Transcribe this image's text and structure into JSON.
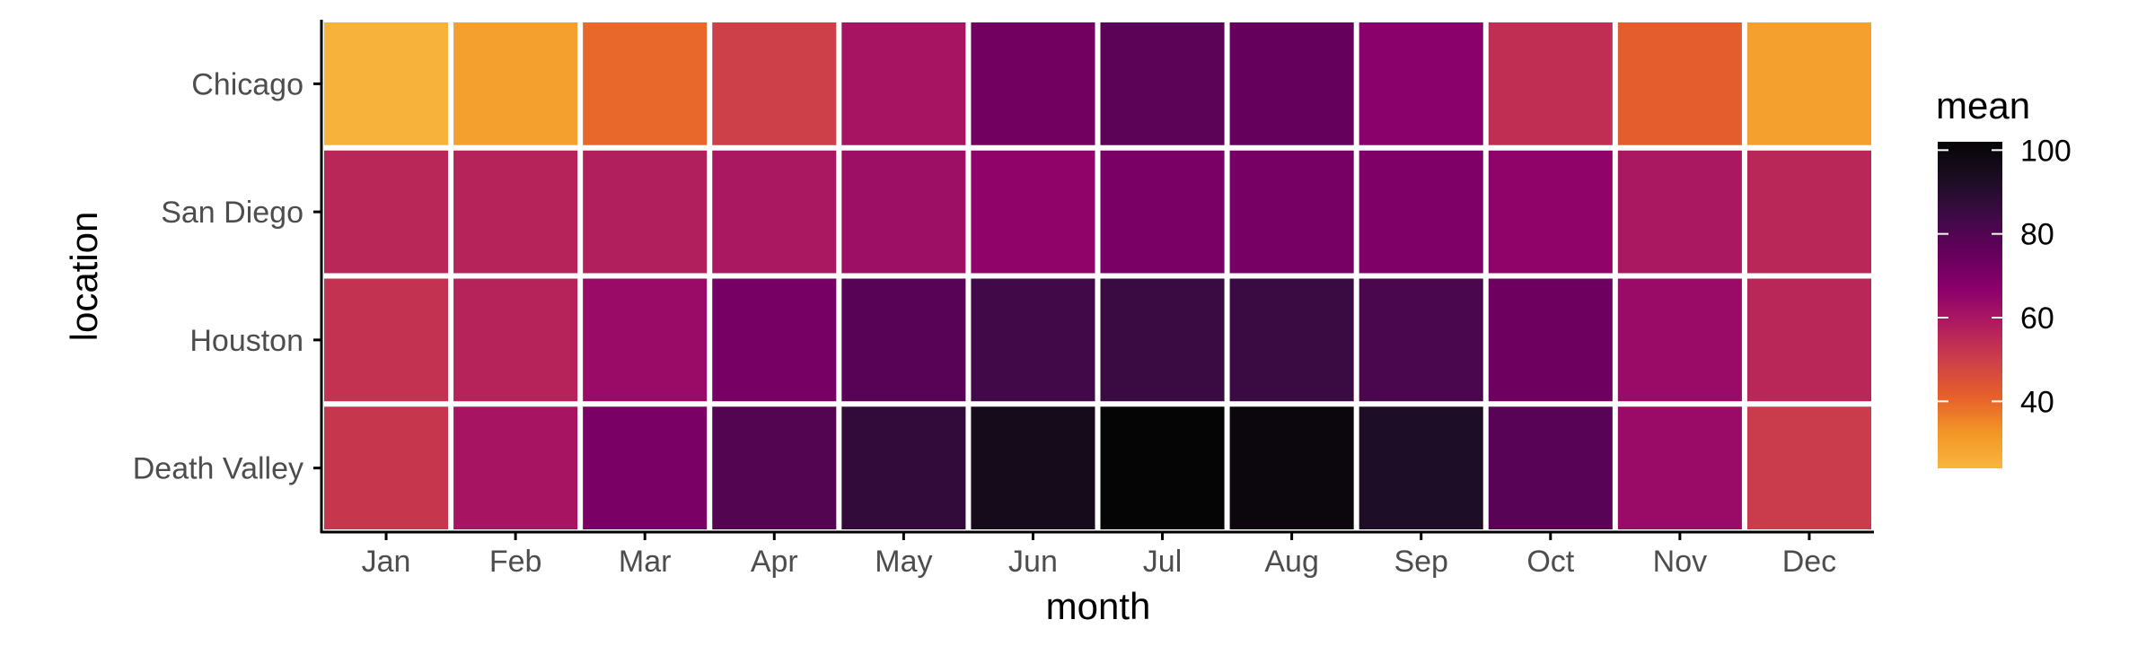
{
  "chart_data": {
    "type": "heatmap",
    "xlabel": "month",
    "ylabel": "location",
    "x_categories": [
      "Jan",
      "Feb",
      "Mar",
      "Apr",
      "May",
      "Jun",
      "Jul",
      "Aug",
      "Sep",
      "Oct",
      "Nov",
      "Dec"
    ],
    "y_categories": [
      "Chicago",
      "San Diego",
      "Houston",
      "Death Valley"
    ],
    "values": [
      [
        25,
        30,
        40,
        50,
        61,
        73,
        78,
        76,
        67,
        54,
        42,
        30
      ],
      [
        56,
        57,
        58,
        60,
        63,
        66,
        71,
        72,
        70,
        66,
        60,
        56
      ],
      [
        53,
        57,
        64,
        72,
        79,
        84,
        86,
        86,
        82,
        74,
        64,
        56
      ],
      [
        52,
        61,
        71,
        80,
        88,
        96,
        102,
        100,
        93,
        79,
        64,
        51
      ]
    ],
    "legend": {
      "title": "mean",
      "ticks": [
        40,
        60,
        80,
        100
      ],
      "range": [
        24,
        102
      ],
      "position": "right"
    },
    "colors": {
      "scale": [
        "#f8b63f",
        "#f29626",
        "#e5602b",
        "#cd3f49",
        "#b01c5f",
        "#8a006b",
        "#65005c",
        "#3f0a47",
        "#1d0d25",
        "#050505"
      ],
      "grid_lines": "#ffffff",
      "axis": "#000000"
    },
    "grid": false
  }
}
